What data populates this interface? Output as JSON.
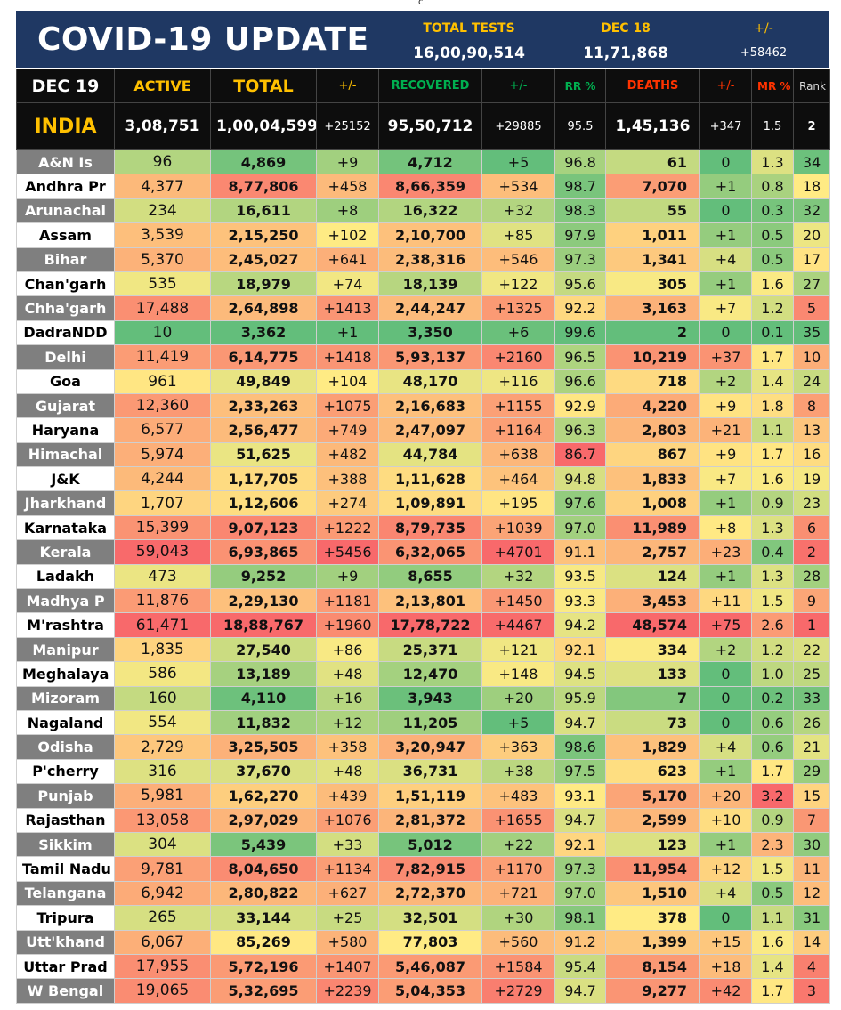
{
  "corner_mark": "c",
  "header": {
    "title": "COVID-19 UPDATE",
    "total_tests_label": "TOTAL TESTS",
    "total_tests_value": "16,00,90,514",
    "day_tests_label": "DEC 18",
    "day_tests_value": "11,71,868",
    "change_label": "+/-",
    "change_value": "+58462"
  },
  "colors": {
    "title_band": "#1f3863",
    "accent_yellow": "#ffc000",
    "accent_green": "#00b050",
    "accent_red": "#ff3300"
  },
  "chart_data": {
    "type": "table",
    "title": "COVID-19 UPDATE",
    "columns": [
      "DEC 19",
      "ACTIVE",
      "TOTAL",
      "+/-",
      "RECOVERED",
      "+/-",
      "RR %",
      "DEATHS",
      "+/-",
      "MR %",
      "Rank"
    ],
    "india": [
      "INDIA",
      "3,08,751",
      "1,00,04,599",
      "+25152",
      "95,50,712",
      "+29885",
      "95.5",
      "1,45,136",
      "+347",
      "1.5",
      "2"
    ],
    "rows": [
      [
        "A&N Is",
        "96",
        "4,869",
        "+9",
        "4,712",
        "+5",
        "96.8",
        "61",
        "0",
        "1.3",
        "34"
      ],
      [
        "Andhra Pr",
        "4,377",
        "8,77,806",
        "+458",
        "8,66,359",
        "+534",
        "98.7",
        "7,070",
        "+1",
        "0.8",
        "18"
      ],
      [
        "Arunachal",
        "234",
        "16,611",
        "+8",
        "16,322",
        "+32",
        "98.3",
        "55",
        "0",
        "0.3",
        "32"
      ],
      [
        "Assam",
        "3,539",
        "2,15,250",
        "+102",
        "2,10,700",
        "+85",
        "97.9",
        "1,011",
        "+1",
        "0.5",
        "20"
      ],
      [
        "Bihar",
        "5,370",
        "2,45,027",
        "+641",
        "2,38,316",
        "+546",
        "97.3",
        "1,341",
        "+4",
        "0.5",
        "17"
      ],
      [
        "Chan'garh",
        "535",
        "18,979",
        "+74",
        "18,139",
        "+122",
        "95.6",
        "305",
        "+1",
        "1.6",
        "27"
      ],
      [
        "Chha'garh",
        "17,488",
        "2,64,898",
        "+1413",
        "2,44,247",
        "+1325",
        "92.2",
        "3,163",
        "+7",
        "1.2",
        "5"
      ],
      [
        "DadraNDD",
        "10",
        "3,362",
        "+1",
        "3,350",
        "+6",
        "99.6",
        "2",
        "0",
        "0.1",
        "35"
      ],
      [
        "Delhi",
        "11,419",
        "6,14,775",
        "+1418",
        "5,93,137",
        "+2160",
        "96.5",
        "10,219",
        "+37",
        "1.7",
        "10"
      ],
      [
        "Goa",
        "961",
        "49,849",
        "+104",
        "48,170",
        "+116",
        "96.6",
        "718",
        "+2",
        "1.4",
        "24"
      ],
      [
        "Gujarat",
        "12,360",
        "2,33,263",
        "+1075",
        "2,16,683",
        "+1155",
        "92.9",
        "4,220",
        "+9",
        "1.8",
        "8"
      ],
      [
        "Haryana",
        "6,577",
        "2,56,477",
        "+749",
        "2,47,097",
        "+1164",
        "96.3",
        "2,803",
        "+21",
        "1.1",
        "13"
      ],
      [
        "Himachal",
        "5,974",
        "51,625",
        "+482",
        "44,784",
        "+638",
        "86.7",
        "867",
        "+9",
        "1.7",
        "16"
      ],
      [
        "J&K",
        "4,244",
        "1,17,705",
        "+388",
        "1,11,628",
        "+464",
        "94.8",
        "1,833",
        "+7",
        "1.6",
        "19"
      ],
      [
        "Jharkhand",
        "1,707",
        "1,12,606",
        "+274",
        "1,09,891",
        "+195",
        "97.6",
        "1,008",
        "+1",
        "0.9",
        "23"
      ],
      [
        "Karnataka",
        "15,399",
        "9,07,123",
        "+1222",
        "8,79,735",
        "+1039",
        "97.0",
        "11,989",
        "+8",
        "1.3",
        "6"
      ],
      [
        "Kerala",
        "59,043",
        "6,93,865",
        "+5456",
        "6,32,065",
        "+4701",
        "91.1",
        "2,757",
        "+23",
        "0.4",
        "2"
      ],
      [
        "Ladakh",
        "473",
        "9,252",
        "+9",
        "8,655",
        "+32",
        "93.5",
        "124",
        "+1",
        "1.3",
        "28"
      ],
      [
        "Madhya P",
        "11,876",
        "2,29,130",
        "+1181",
        "2,13,801",
        "+1450",
        "93.3",
        "3,453",
        "+11",
        "1.5",
        "9"
      ],
      [
        "M'rashtra",
        "61,471",
        "18,88,767",
        "+1960",
        "17,78,722",
        "+4467",
        "94.2",
        "48,574",
        "+75",
        "2.6",
        "1"
      ],
      [
        "Manipur",
        "1,835",
        "27,540",
        "+86",
        "25,371",
        "+121",
        "92.1",
        "334",
        "+2",
        "1.2",
        "22"
      ],
      [
        "Meghalaya",
        "586",
        "13,189",
        "+48",
        "12,470",
        "+148",
        "94.5",
        "133",
        "0",
        "1.0",
        "25"
      ],
      [
        "Mizoram",
        "160",
        "4,110",
        "+16",
        "3,943",
        "+20",
        "95.9",
        "7",
        "0",
        "0.2",
        "33"
      ],
      [
        "Nagaland",
        "554",
        "11,832",
        "+12",
        "11,205",
        "+5",
        "94.7",
        "73",
        "0",
        "0.6",
        "26"
      ],
      [
        "Odisha",
        "2,729",
        "3,25,505",
        "+358",
        "3,20,947",
        "+363",
        "98.6",
        "1,829",
        "+4",
        "0.6",
        "21"
      ],
      [
        "P'cherry",
        "316",
        "37,670",
        "+48",
        "36,731",
        "+38",
        "97.5",
        "623",
        "+1",
        "1.7",
        "29"
      ],
      [
        "Punjab",
        "5,981",
        "1,62,270",
        "+439",
        "1,51,119",
        "+483",
        "93.1",
        "5,170",
        "+20",
        "3.2",
        "15"
      ],
      [
        "Rajasthan",
        "13,058",
        "2,97,029",
        "+1076",
        "2,81,372",
        "+1655",
        "94.7",
        "2,599",
        "+10",
        "0.9",
        "7"
      ],
      [
        "Sikkim",
        "304",
        "5,439",
        "+33",
        "5,012",
        "+22",
        "92.1",
        "123",
        "+1",
        "2.3",
        "30"
      ],
      [
        "Tamil Nadu",
        "9,781",
        "8,04,650",
        "+1134",
        "7,82,915",
        "+1170",
        "97.3",
        "11,954",
        "+12",
        "1.5",
        "11"
      ],
      [
        "Telangana",
        "6,942",
        "2,80,822",
        "+627",
        "2,72,370",
        "+721",
        "97.0",
        "1,510",
        "+4",
        "0.5",
        "12"
      ],
      [
        "Tripura",
        "265",
        "33,144",
        "+25",
        "32,501",
        "+30",
        "98.1",
        "378",
        "0",
        "1.1",
        "31"
      ],
      [
        "Utt'khand",
        "6,067",
        "85,269",
        "+580",
        "77,803",
        "+560",
        "91.2",
        "1,399",
        "+15",
        "1.6",
        "14"
      ],
      [
        "Uttar Prad",
        "17,955",
        "5,72,196",
        "+1407",
        "5,46,087",
        "+1584",
        "95.4",
        "8,154",
        "+18",
        "1.4",
        "4"
      ],
      [
        "W Bengal",
        "19,065",
        "5,32,695",
        "+2239",
        "5,04,353",
        "+2729",
        "94.7",
        "9,277",
        "+42",
        "1.7",
        "3"
      ]
    ]
  }
}
